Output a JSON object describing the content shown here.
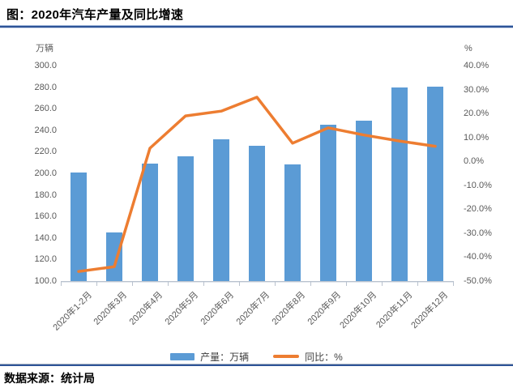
{
  "header": {
    "title": "图：2020年汽车产量及同比增速"
  },
  "footer": {
    "source": "数据来源：统计局"
  },
  "colors": {
    "bar": "#5B9BD5",
    "line": "#ED7D31",
    "axis_text": "#595959",
    "rule_blue": "#2E5497"
  },
  "chart_data": {
    "type": "bar",
    "title": "图：2020年汽车产量及同比增速",
    "grid": false,
    "legend_position": "bottom",
    "categories": [
      "2020年1-2月",
      "2020年3月",
      "2020年4月",
      "2020年5月",
      "2020年6月",
      "2020年7月",
      "2020年8月",
      "2020年9月",
      "2020年10月",
      "2020年11月",
      "2020年12月"
    ],
    "series": [
      {
        "name": "产量：万辆",
        "kind": "bar",
        "axis": "left",
        "color": "#5B9BD5",
        "values": [
          200.5,
          145.0,
          209.0,
          215.5,
          231.5,
          225.5,
          208.0,
          245.5,
          249.0,
          279.5,
          280.5
        ]
      },
      {
        "name": "同比：%",
        "kind": "line",
        "axis": "right",
        "color": "#ED7D31",
        "values": [
          -46.0,
          -44.0,
          5.5,
          19.0,
          21.0,
          26.8,
          7.6,
          14.0,
          11.0,
          8.5,
          6.3
        ]
      }
    ],
    "left_axis": {
      "unit": "万辆",
      "min": 100,
      "max": 300,
      "step": 20,
      "tick_labels": [
        "300.0",
        "280.0",
        "260.0",
        "240.0",
        "220.0",
        "200.0",
        "180.0",
        "160.0",
        "140.0",
        "120.0",
        "100.0"
      ]
    },
    "right_axis": {
      "unit": "%",
      "min": -50,
      "max": 40,
      "step": 10,
      "tick_labels": [
        "40.0%",
        "30.0%",
        "20.0%",
        "10.0%",
        "0.0%",
        "-10.0%",
        "-20.0%",
        "-30.0%",
        "-40.0%",
        "-50.0%"
      ]
    }
  }
}
